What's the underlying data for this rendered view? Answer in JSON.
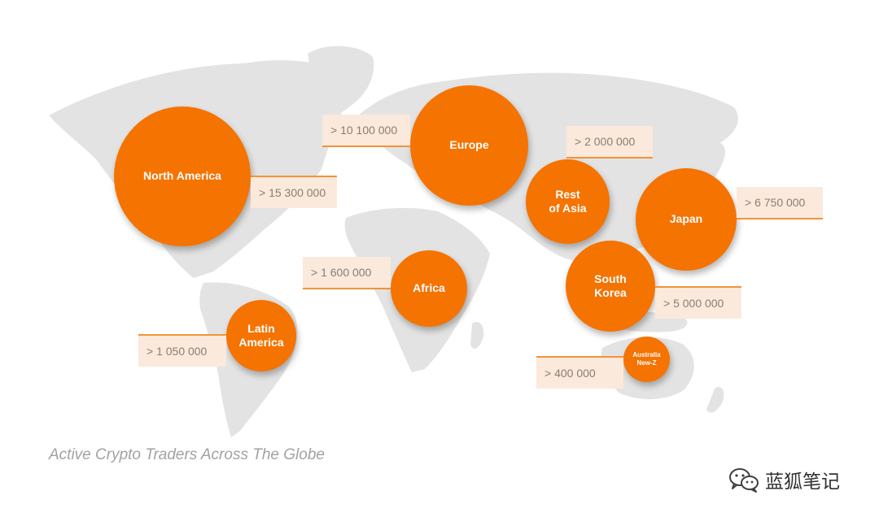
{
  "caption": "Active Crypto Traders Across The Globe",
  "watermark": {
    "text": "蓝狐笔记",
    "icon": "wechat-icon"
  },
  "colors": {
    "bubble": "#f57300",
    "tag_bg": "#fbe9dc",
    "tag_rule": "#f2933a",
    "land": "#e3e3e3",
    "caption": "#a2a2a2"
  },
  "regions": [
    {
      "id": "north-america",
      "label_lines": [
        "North America"
      ],
      "value": "> 15 300 000"
    },
    {
      "id": "europe",
      "label_lines": [
        "Europe"
      ],
      "value": "> 10 100 000"
    },
    {
      "id": "rest-of-asia",
      "label_lines": [
        "Rest",
        "of Asia"
      ],
      "value": "> 2 000 000"
    },
    {
      "id": "japan",
      "label_lines": [
        "Japan"
      ],
      "value": "> 6 750 000"
    },
    {
      "id": "africa",
      "label_lines": [
        "Africa"
      ],
      "value": "> 1 600 000"
    },
    {
      "id": "south-korea",
      "label_lines": [
        "South",
        "Korea"
      ],
      "value": "> 5 000 000"
    },
    {
      "id": "latin-america",
      "label_lines": [
        "Latin",
        "America"
      ],
      "value": "> 1 050 000"
    },
    {
      "id": "australia-new-z",
      "label_lines": [
        "Australia",
        "New-Z"
      ],
      "value": "> 400 000"
    }
  ]
}
